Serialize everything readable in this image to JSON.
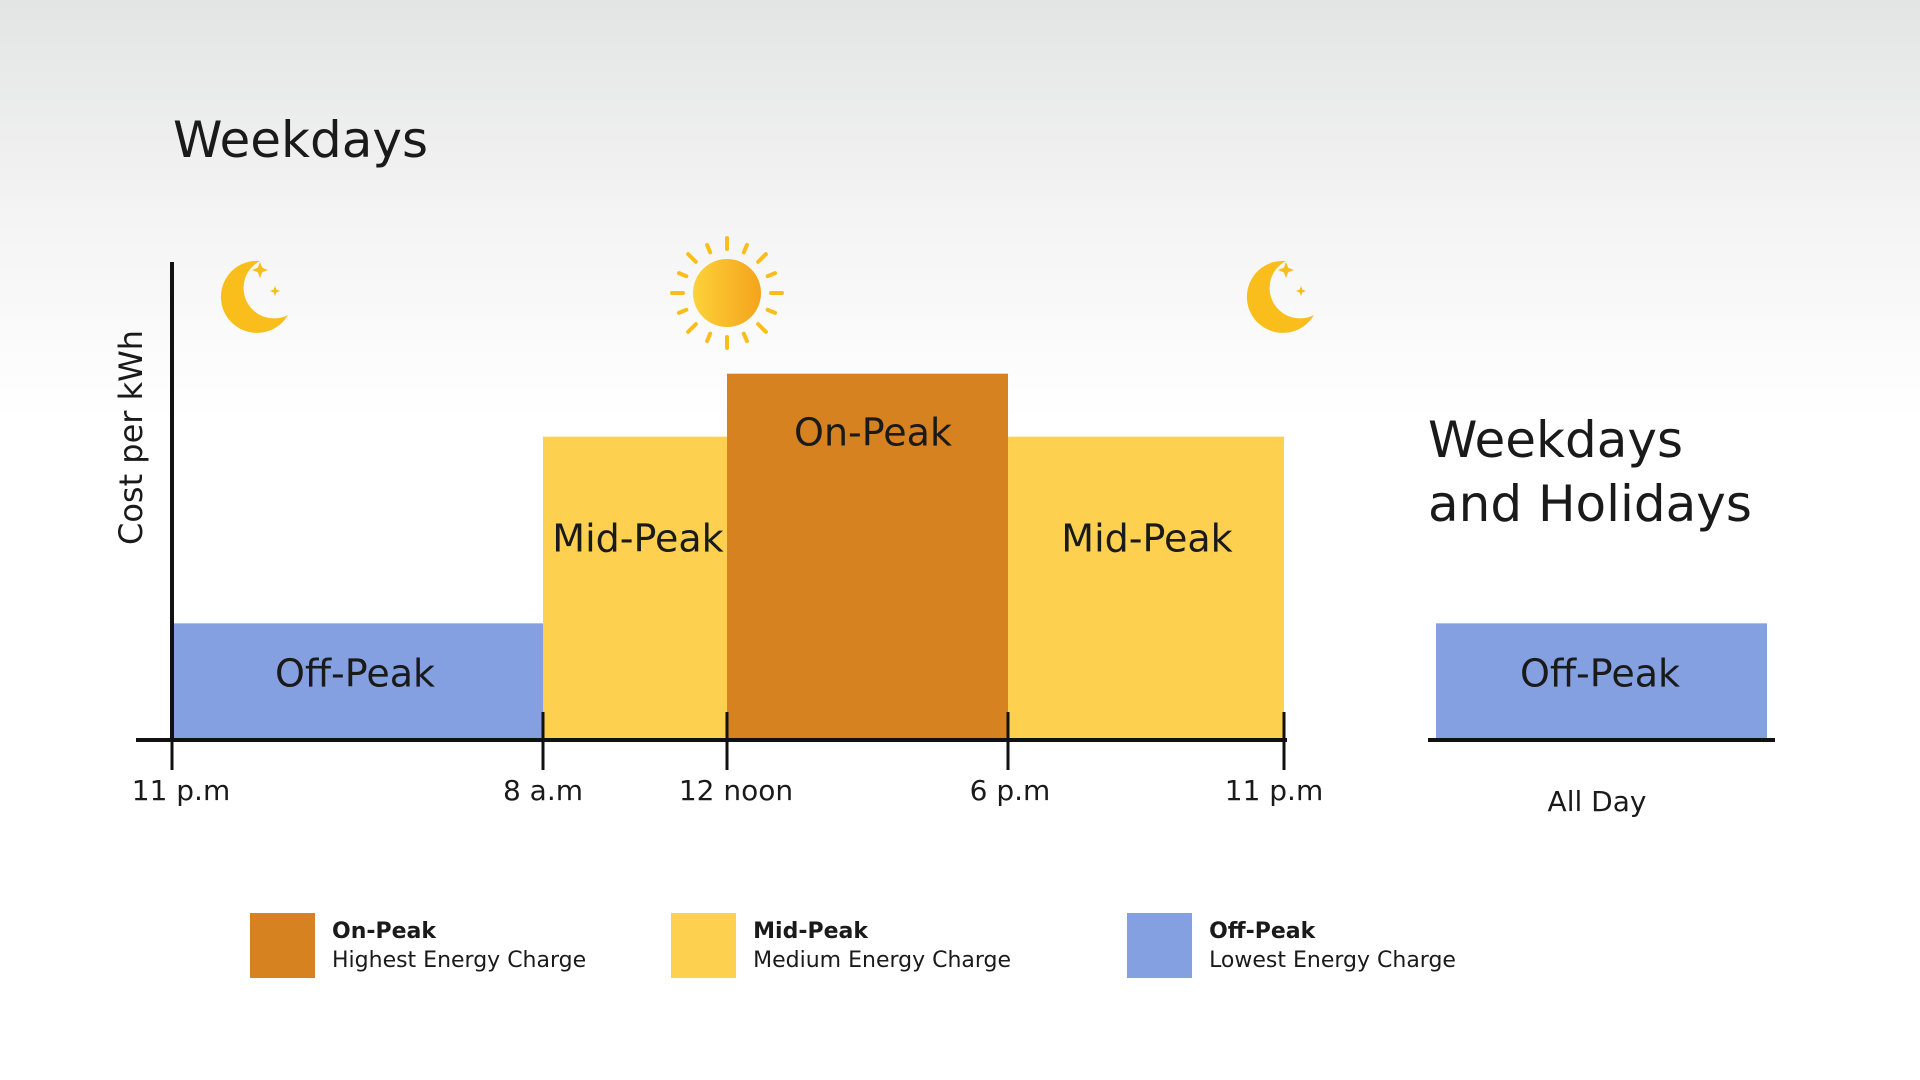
{
  "chart_data": [
    {
      "type": "bar",
      "title": "Weekdays",
      "ylabel": "Cost per kWh",
      "x_ticks": [
        "11 p.m",
        "8 a.m",
        "12 noon",
        "6 p.m",
        "11 p.m"
      ],
      "periods": [
        {
          "label": "Off-Peak",
          "start": "11 p.m",
          "end": "8 a.m",
          "level": 1,
          "color": "#84a0e0"
        },
        {
          "label": "Mid-Peak",
          "start": "8 a.m",
          "end": "12 noon",
          "level": 2.6,
          "color": "#fdd050"
        },
        {
          "label": "On-Peak",
          "start": "12 noon",
          "end": "6 p.m",
          "level": 3.14,
          "color": "#d68221"
        },
        {
          "label": "Mid-Peak",
          "start": "6 p.m",
          "end": "11 p.m",
          "level": 2.6,
          "color": "#fdd050"
        }
      ],
      "ylim": [
        0,
        4.8
      ],
      "icons": [
        "moon-icon",
        "sun-icon",
        "moon-icon"
      ]
    },
    {
      "type": "bar",
      "title": "Weekdays and Holidays",
      "title_lines": [
        "Weekdays",
        "and Holidays"
      ],
      "x_label": "All Day",
      "periods": [
        {
          "label": "Off-Peak",
          "level": 1,
          "color": "#84a0e0"
        }
      ],
      "ylim": [
        0,
        4.8
      ]
    }
  ],
  "legend": [
    {
      "name": "On-Peak",
      "desc": "Highest Energy Charge",
      "color": "#d68221"
    },
    {
      "name": "Mid-Peak",
      "desc": "Medium Energy Charge",
      "color": "#fdd050"
    },
    {
      "name": "Off-Peak",
      "desc": "Lowest Energy Charge",
      "color": "#84a0e0"
    }
  ],
  "colors": {
    "axis": "#111111",
    "icon": "#f9bd1c",
    "icon_dark": "#f5a81a"
  }
}
